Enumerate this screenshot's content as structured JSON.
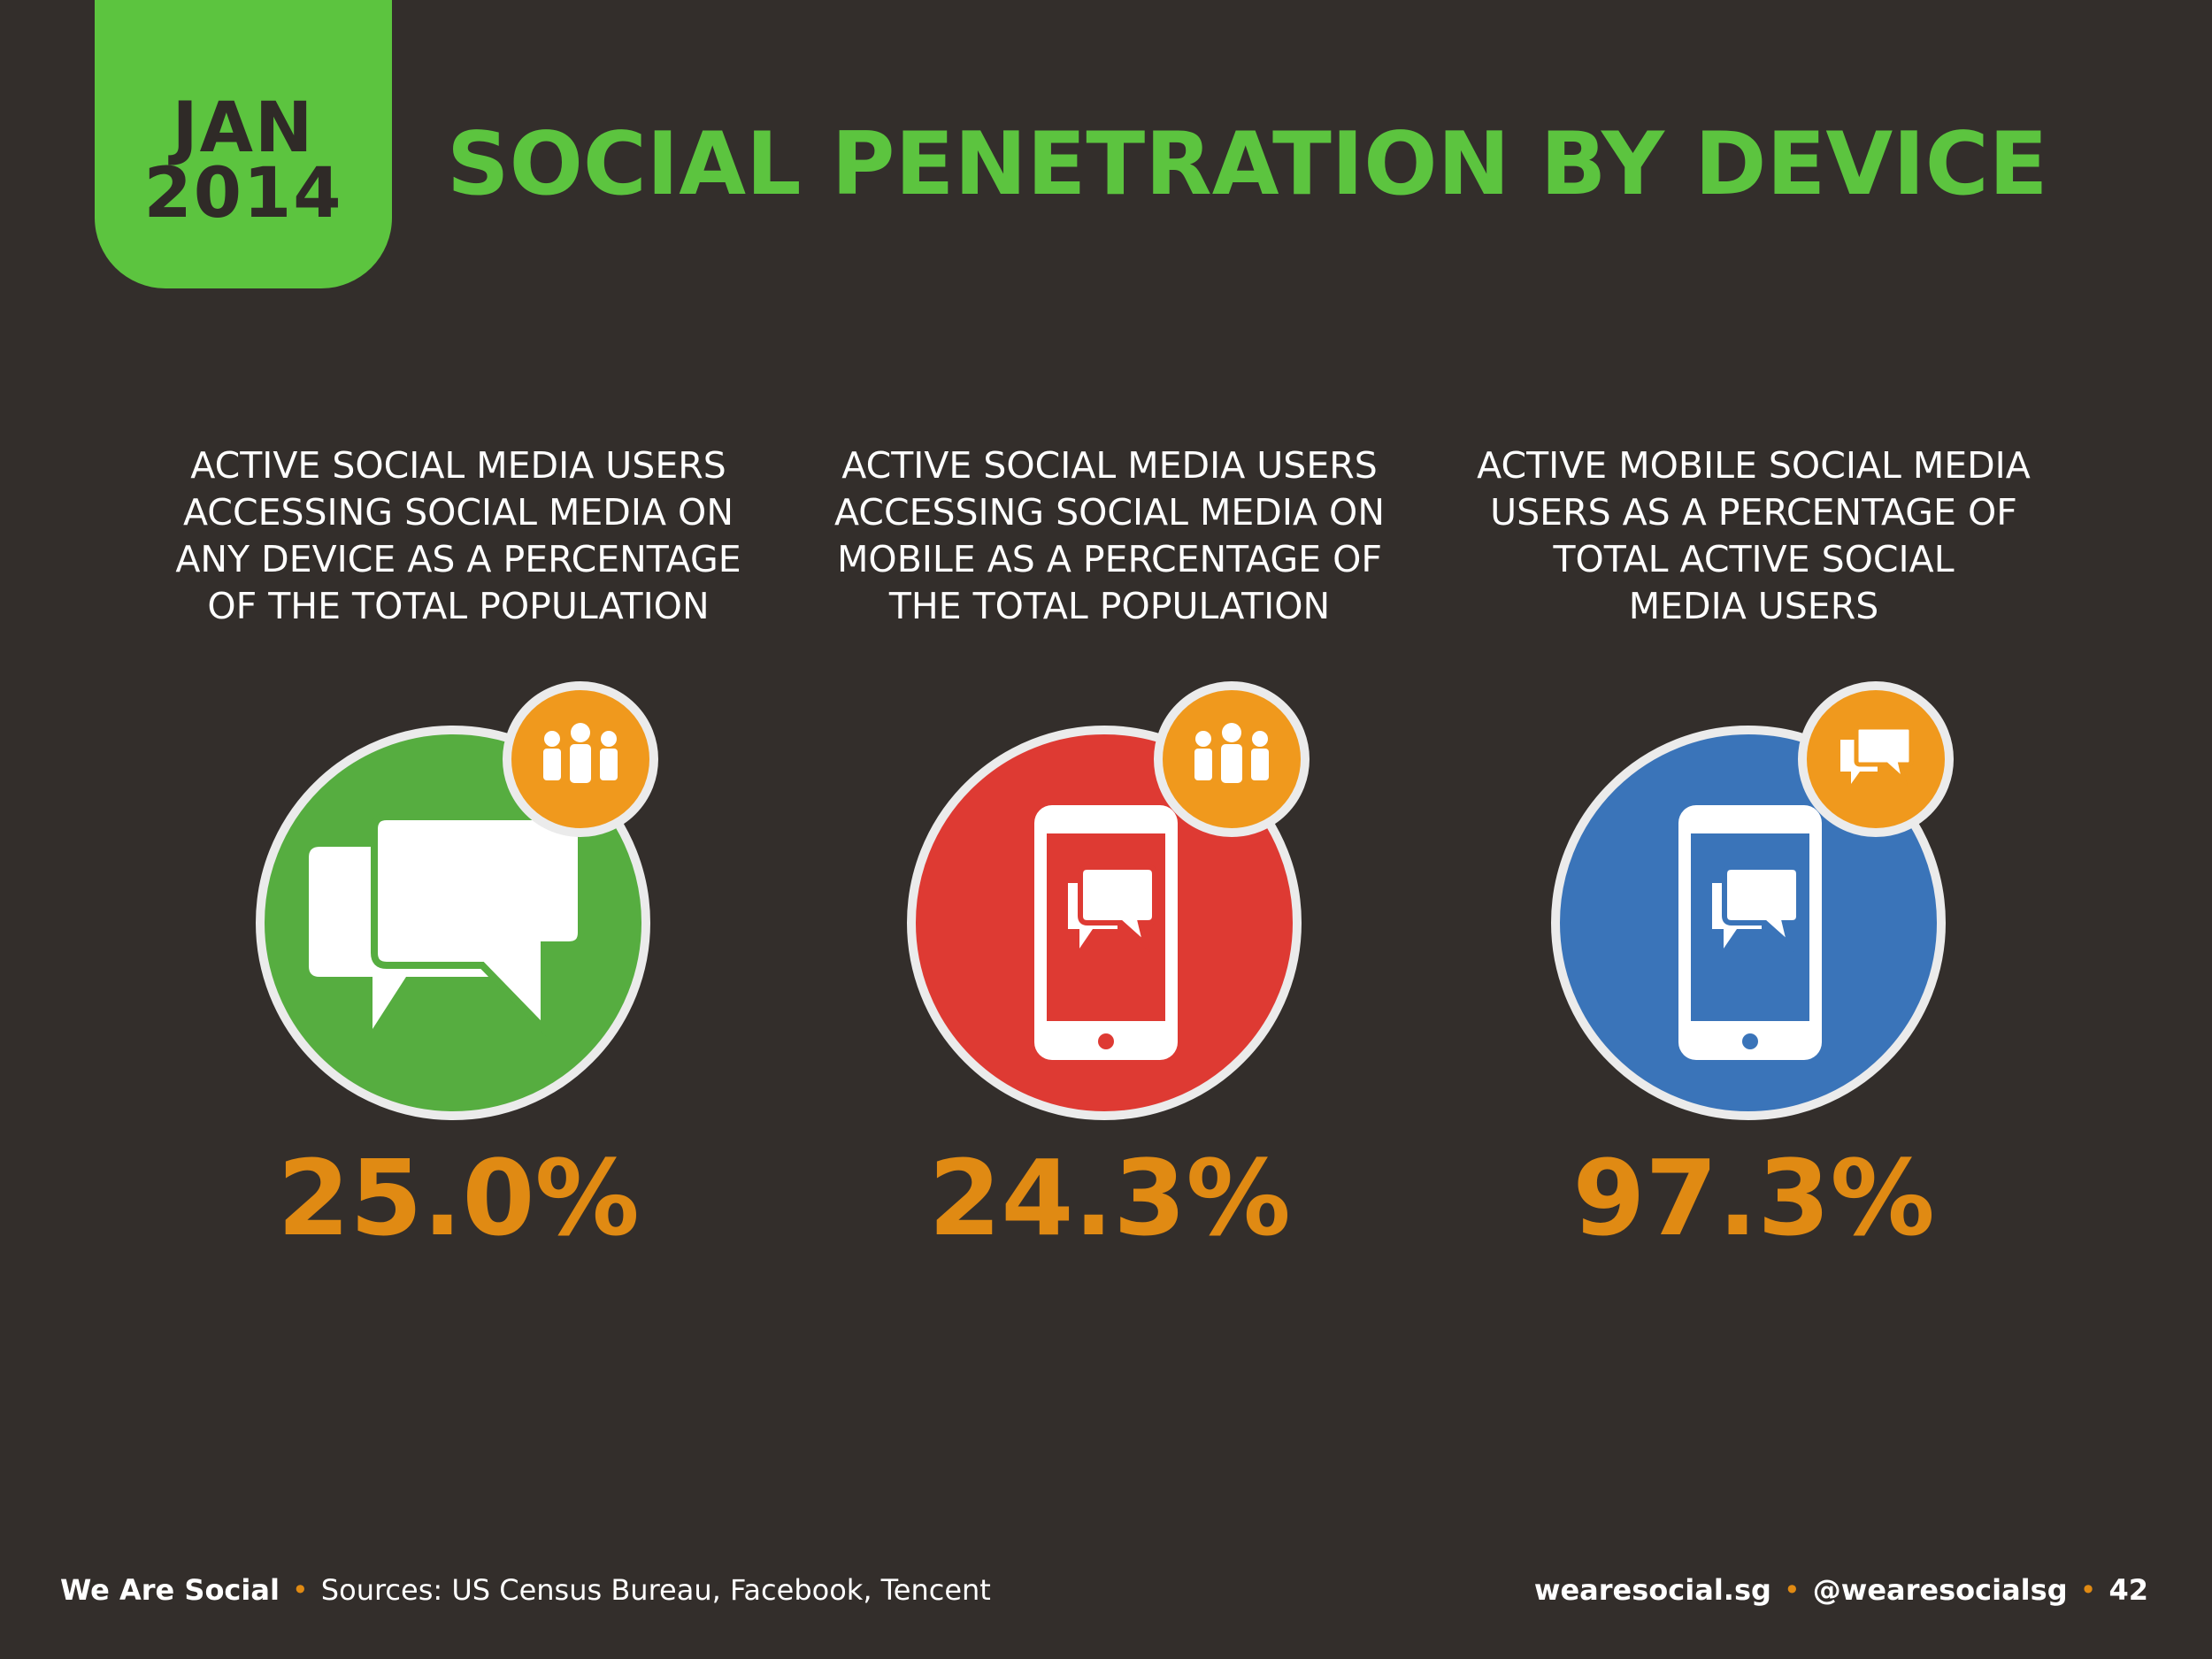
{
  "date": {
    "month": "JAN",
    "year": "2014"
  },
  "title": "SOCIAL PENETRATION BY DEVICE",
  "stats": [
    {
      "description_lines": [
        "ACTIVE SOCIAL MEDIA USERS",
        "ACCESSING SOCIAL MEDIA ON",
        "ANY DEVICE AS A PERCENTAGE",
        "OF THE TOTAL POPULATION"
      ],
      "value": "25.0%",
      "circle_color": "#56ad40",
      "main_icon": "speech-bubbles-icon",
      "badge_icon": "people-icon"
    },
    {
      "description_lines": [
        "ACTIVE SOCIAL MEDIA USERS",
        "ACCESSING SOCIAL MEDIA ON",
        "MOBILE AS A PERCENTAGE OF",
        "THE TOTAL POPULATION"
      ],
      "value": "24.3%",
      "circle_color": "#de3a33",
      "main_icon": "mobile-chat-icon",
      "badge_icon": "people-icon"
    },
    {
      "description_lines": [
        "ACTIVE MOBILE SOCIAL MEDIA",
        "USERS AS A PERCENTAGE OF",
        "TOTAL ACTIVE SOCIAL",
        "MEDIA USERS"
      ],
      "value": "97.3%",
      "circle_color": "#3a74b9",
      "main_icon": "mobile-chat-icon",
      "badge_icon": "chat-bubbles-icon"
    }
  ],
  "footer": {
    "brand": "We Are Social",
    "sources": "Sources: US Census Bureau, Facebook, Tencent",
    "website": "wearesocial.sg",
    "handle": "@wearesocialsg",
    "page": "42"
  },
  "colors": {
    "background": "#332e2b",
    "accent_green": "#5cc43f",
    "value_orange": "#e08a13",
    "badge_orange": "#f0991d"
  }
}
